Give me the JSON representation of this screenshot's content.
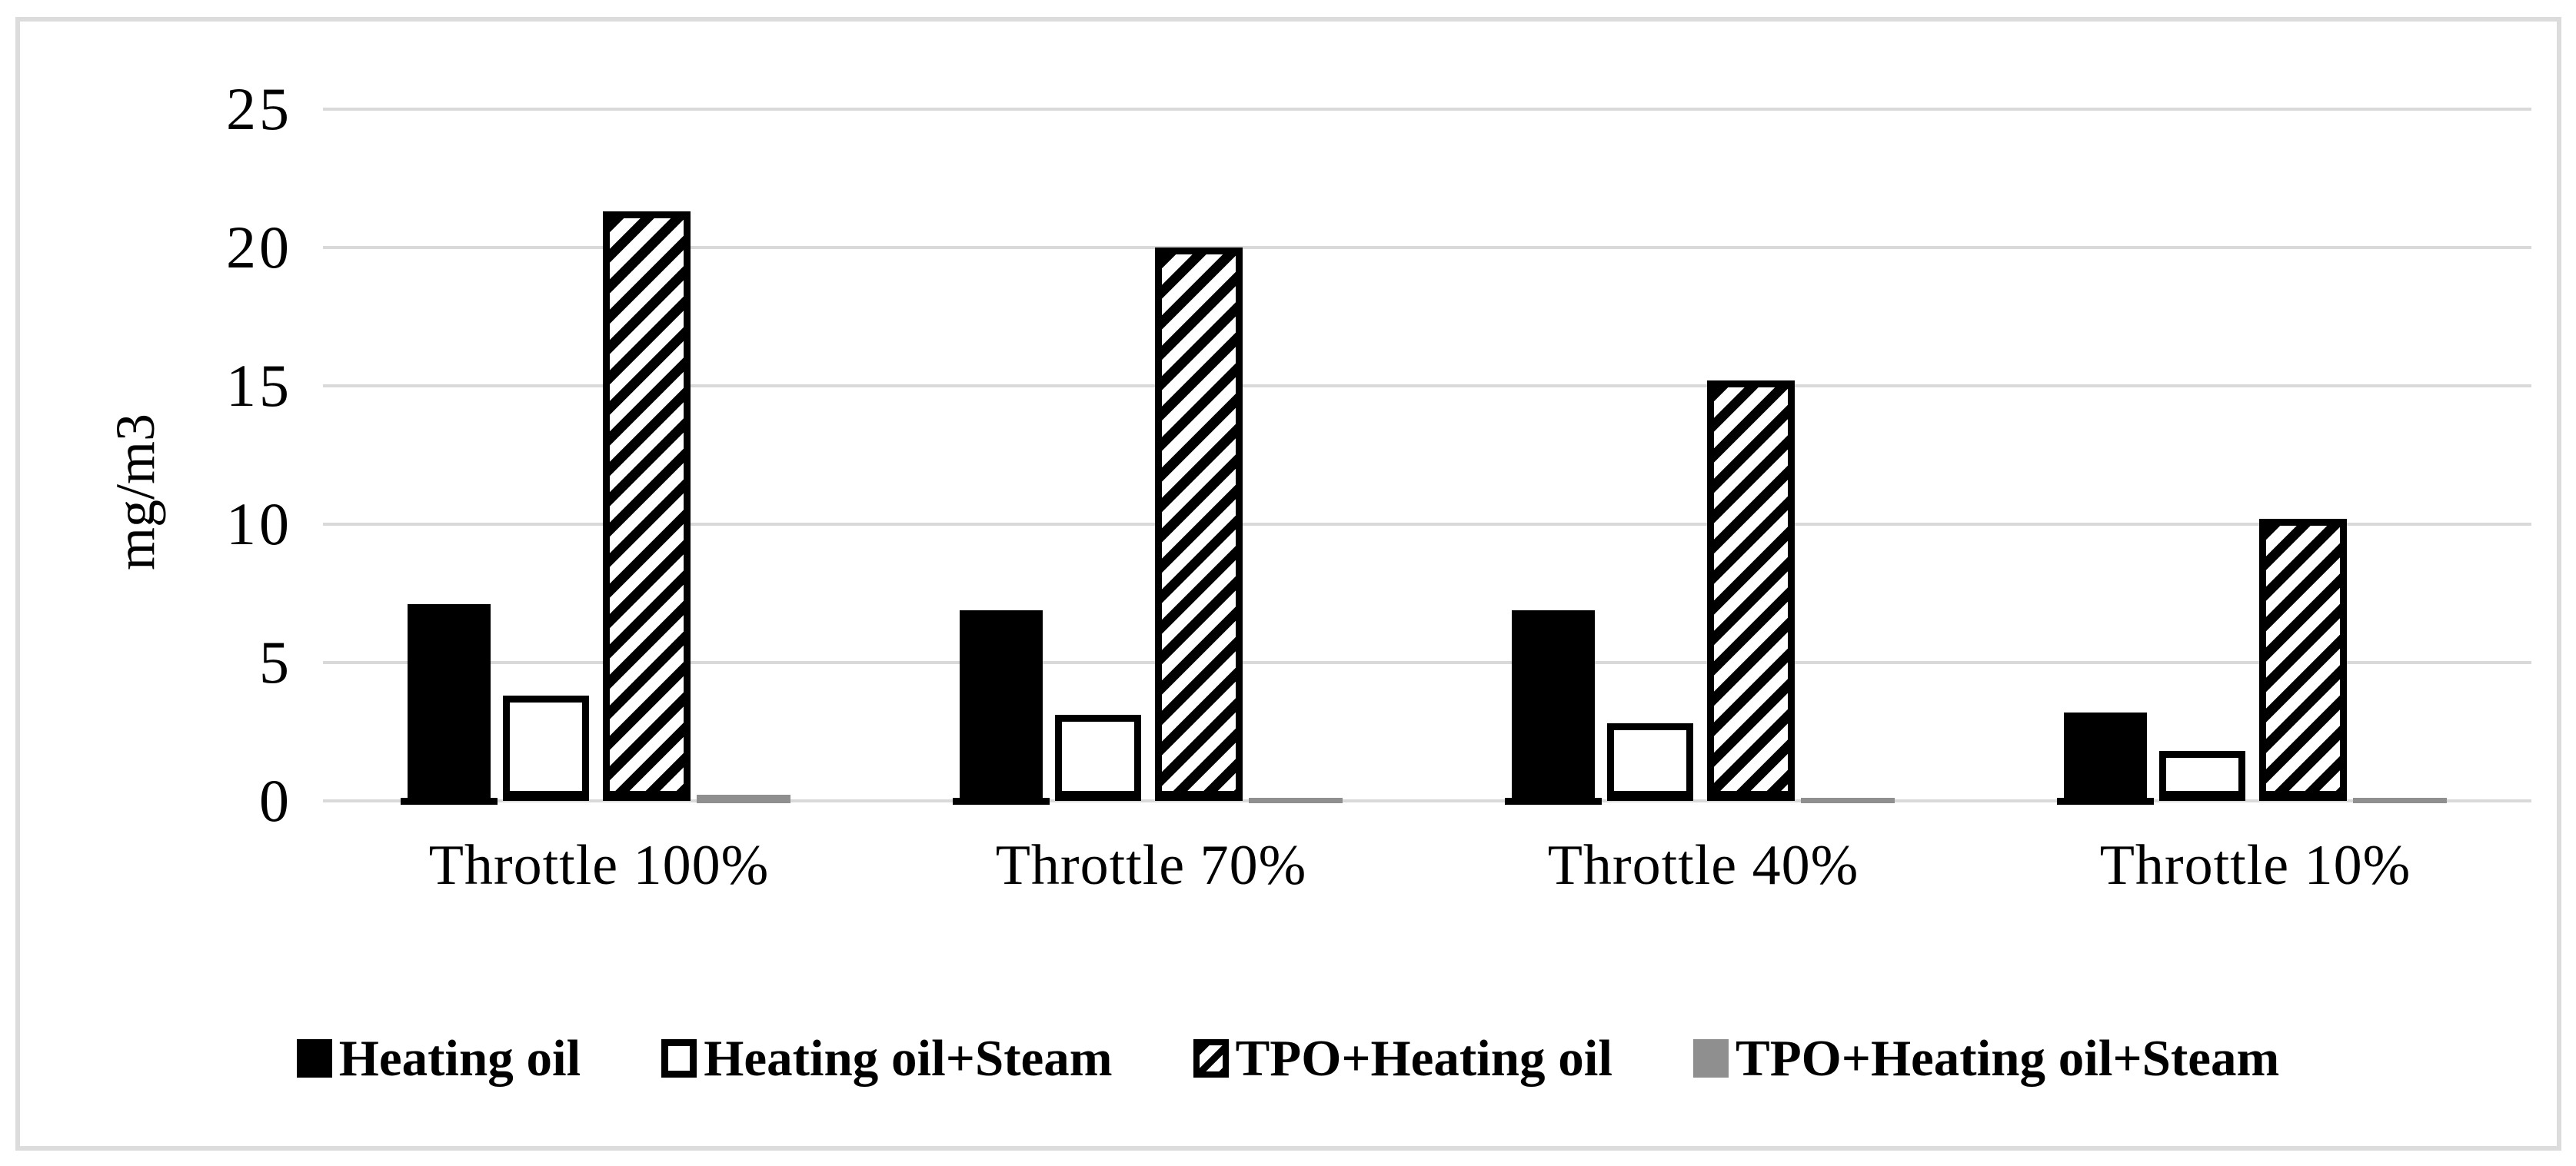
{
  "chart_data": {
    "type": "bar",
    "title": "",
    "ylabel": "mg/m3",
    "xlabel": "",
    "ylim": [
      0,
      25
    ],
    "yticks": [
      0,
      5,
      10,
      15,
      20,
      25
    ],
    "grid": true,
    "legend_position": "bottom",
    "categories": [
      "Throttle 100%",
      "Throttle 70%",
      "Throttle 40%",
      "Throttle 10%"
    ],
    "series": [
      {
        "name": "Heating oil",
        "style": "solid-black",
        "color": "#000000",
        "values": [
          7.1,
          6.9,
          6.9,
          3.2
        ]
      },
      {
        "name": "Heating oil+Steam",
        "style": "white-outline",
        "color": "#ffffff",
        "values": [
          3.8,
          3.1,
          2.8,
          1.8
        ]
      },
      {
        "name": "TPO+Heating oil",
        "style": "diagonal-hatch",
        "color": "#000000",
        "values": [
          21.3,
          20.0,
          15.2,
          10.2
        ]
      },
      {
        "name": "TPO+Heating oil+Steam",
        "style": "solid-gray",
        "color": "#8f8f8f",
        "values": [
          0.3,
          0.2,
          0.2,
          0.2
        ]
      }
    ],
    "gridline_color": "#d9d9d9",
    "frame_color": "#dcdcdc"
  }
}
